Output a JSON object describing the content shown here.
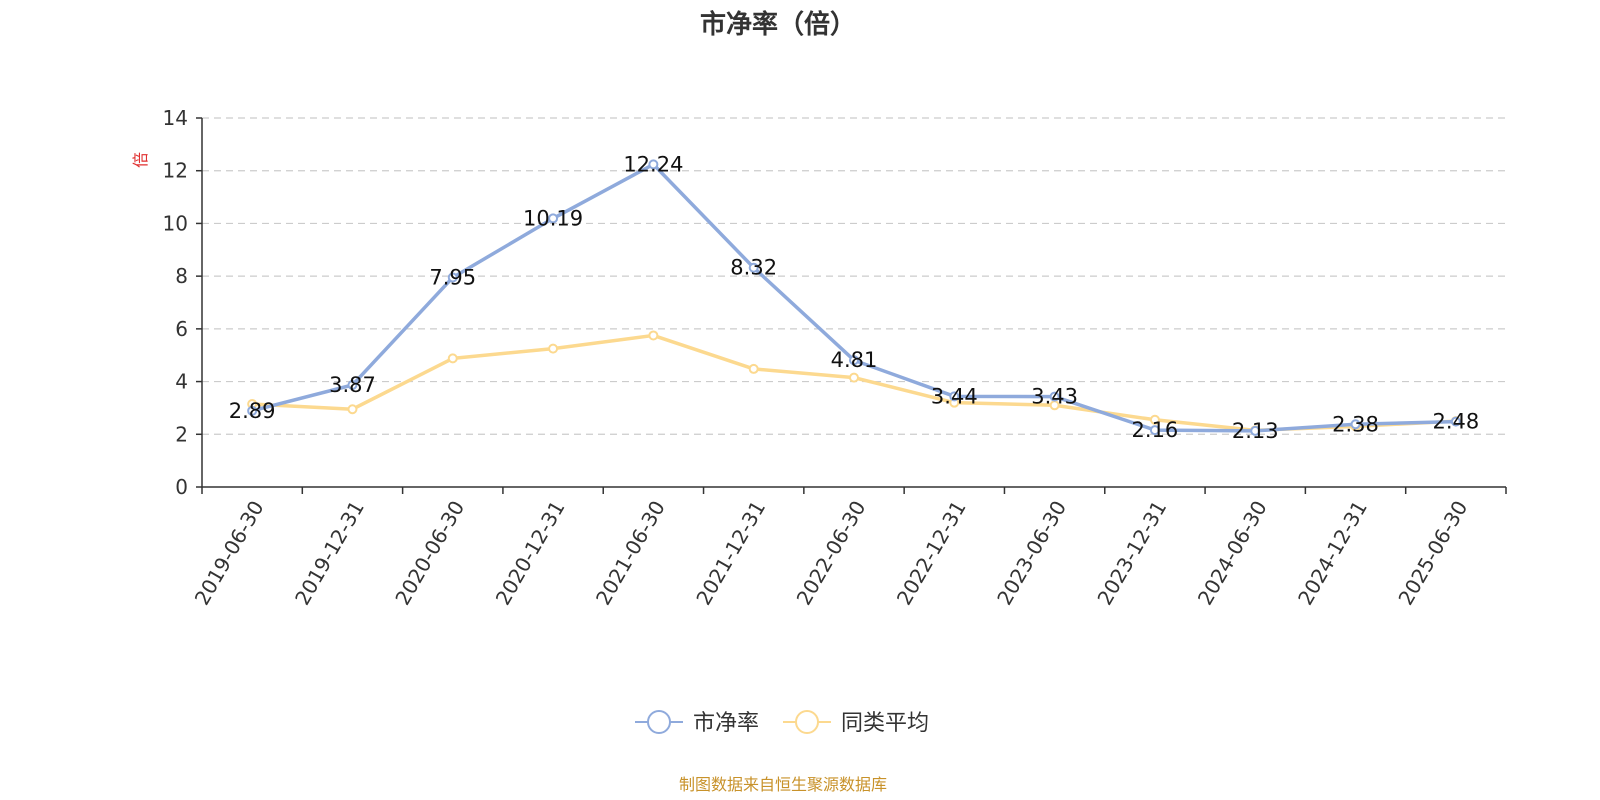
{
  "chart_data": {
    "type": "line",
    "title": "市净率（倍）",
    "ylabel": "倍",
    "xlabel": "",
    "ylim": [
      0,
      14
    ],
    "yticks": [
      0,
      2,
      4,
      6,
      8,
      10,
      12,
      14
    ],
    "grid": true,
    "legend_position": "bottom-center",
    "categories": [
      "2019-06-30",
      "2019-12-31",
      "2020-06-30",
      "2020-12-31",
      "2021-06-30",
      "2021-12-31",
      "2022-06-30",
      "2022-12-31",
      "2023-06-30",
      "2023-12-31",
      "2024-06-30",
      "2024-12-31",
      "2025-06-30"
    ],
    "series": [
      {
        "name": "市净率",
        "color": "#8faadc",
        "values": [
          2.89,
          3.87,
          7.95,
          10.19,
          12.24,
          8.32,
          4.81,
          3.44,
          3.43,
          2.16,
          2.13,
          2.38,
          2.48
        ],
        "labels": [
          "2.89",
          "3.87",
          "7.95",
          "10.19",
          "12.24",
          "8.32",
          "4.81",
          "3.44",
          "3.43",
          "2.16",
          "2.13",
          "2.38",
          "2.48"
        ]
      },
      {
        "name": "同类平均",
        "color": "#fcd98f",
        "values": [
          3.15,
          2.95,
          4.88,
          5.25,
          5.75,
          4.48,
          4.15,
          3.2,
          3.1,
          2.55,
          2.15,
          2.3,
          2.5
        ]
      }
    ]
  },
  "source": {
    "text": "制图数据来自恒生聚源数据库",
    "color": "#c8922a"
  },
  "colors": {
    "unit": "#e03030",
    "axis": "#333333",
    "grid": "#cccccc"
  }
}
